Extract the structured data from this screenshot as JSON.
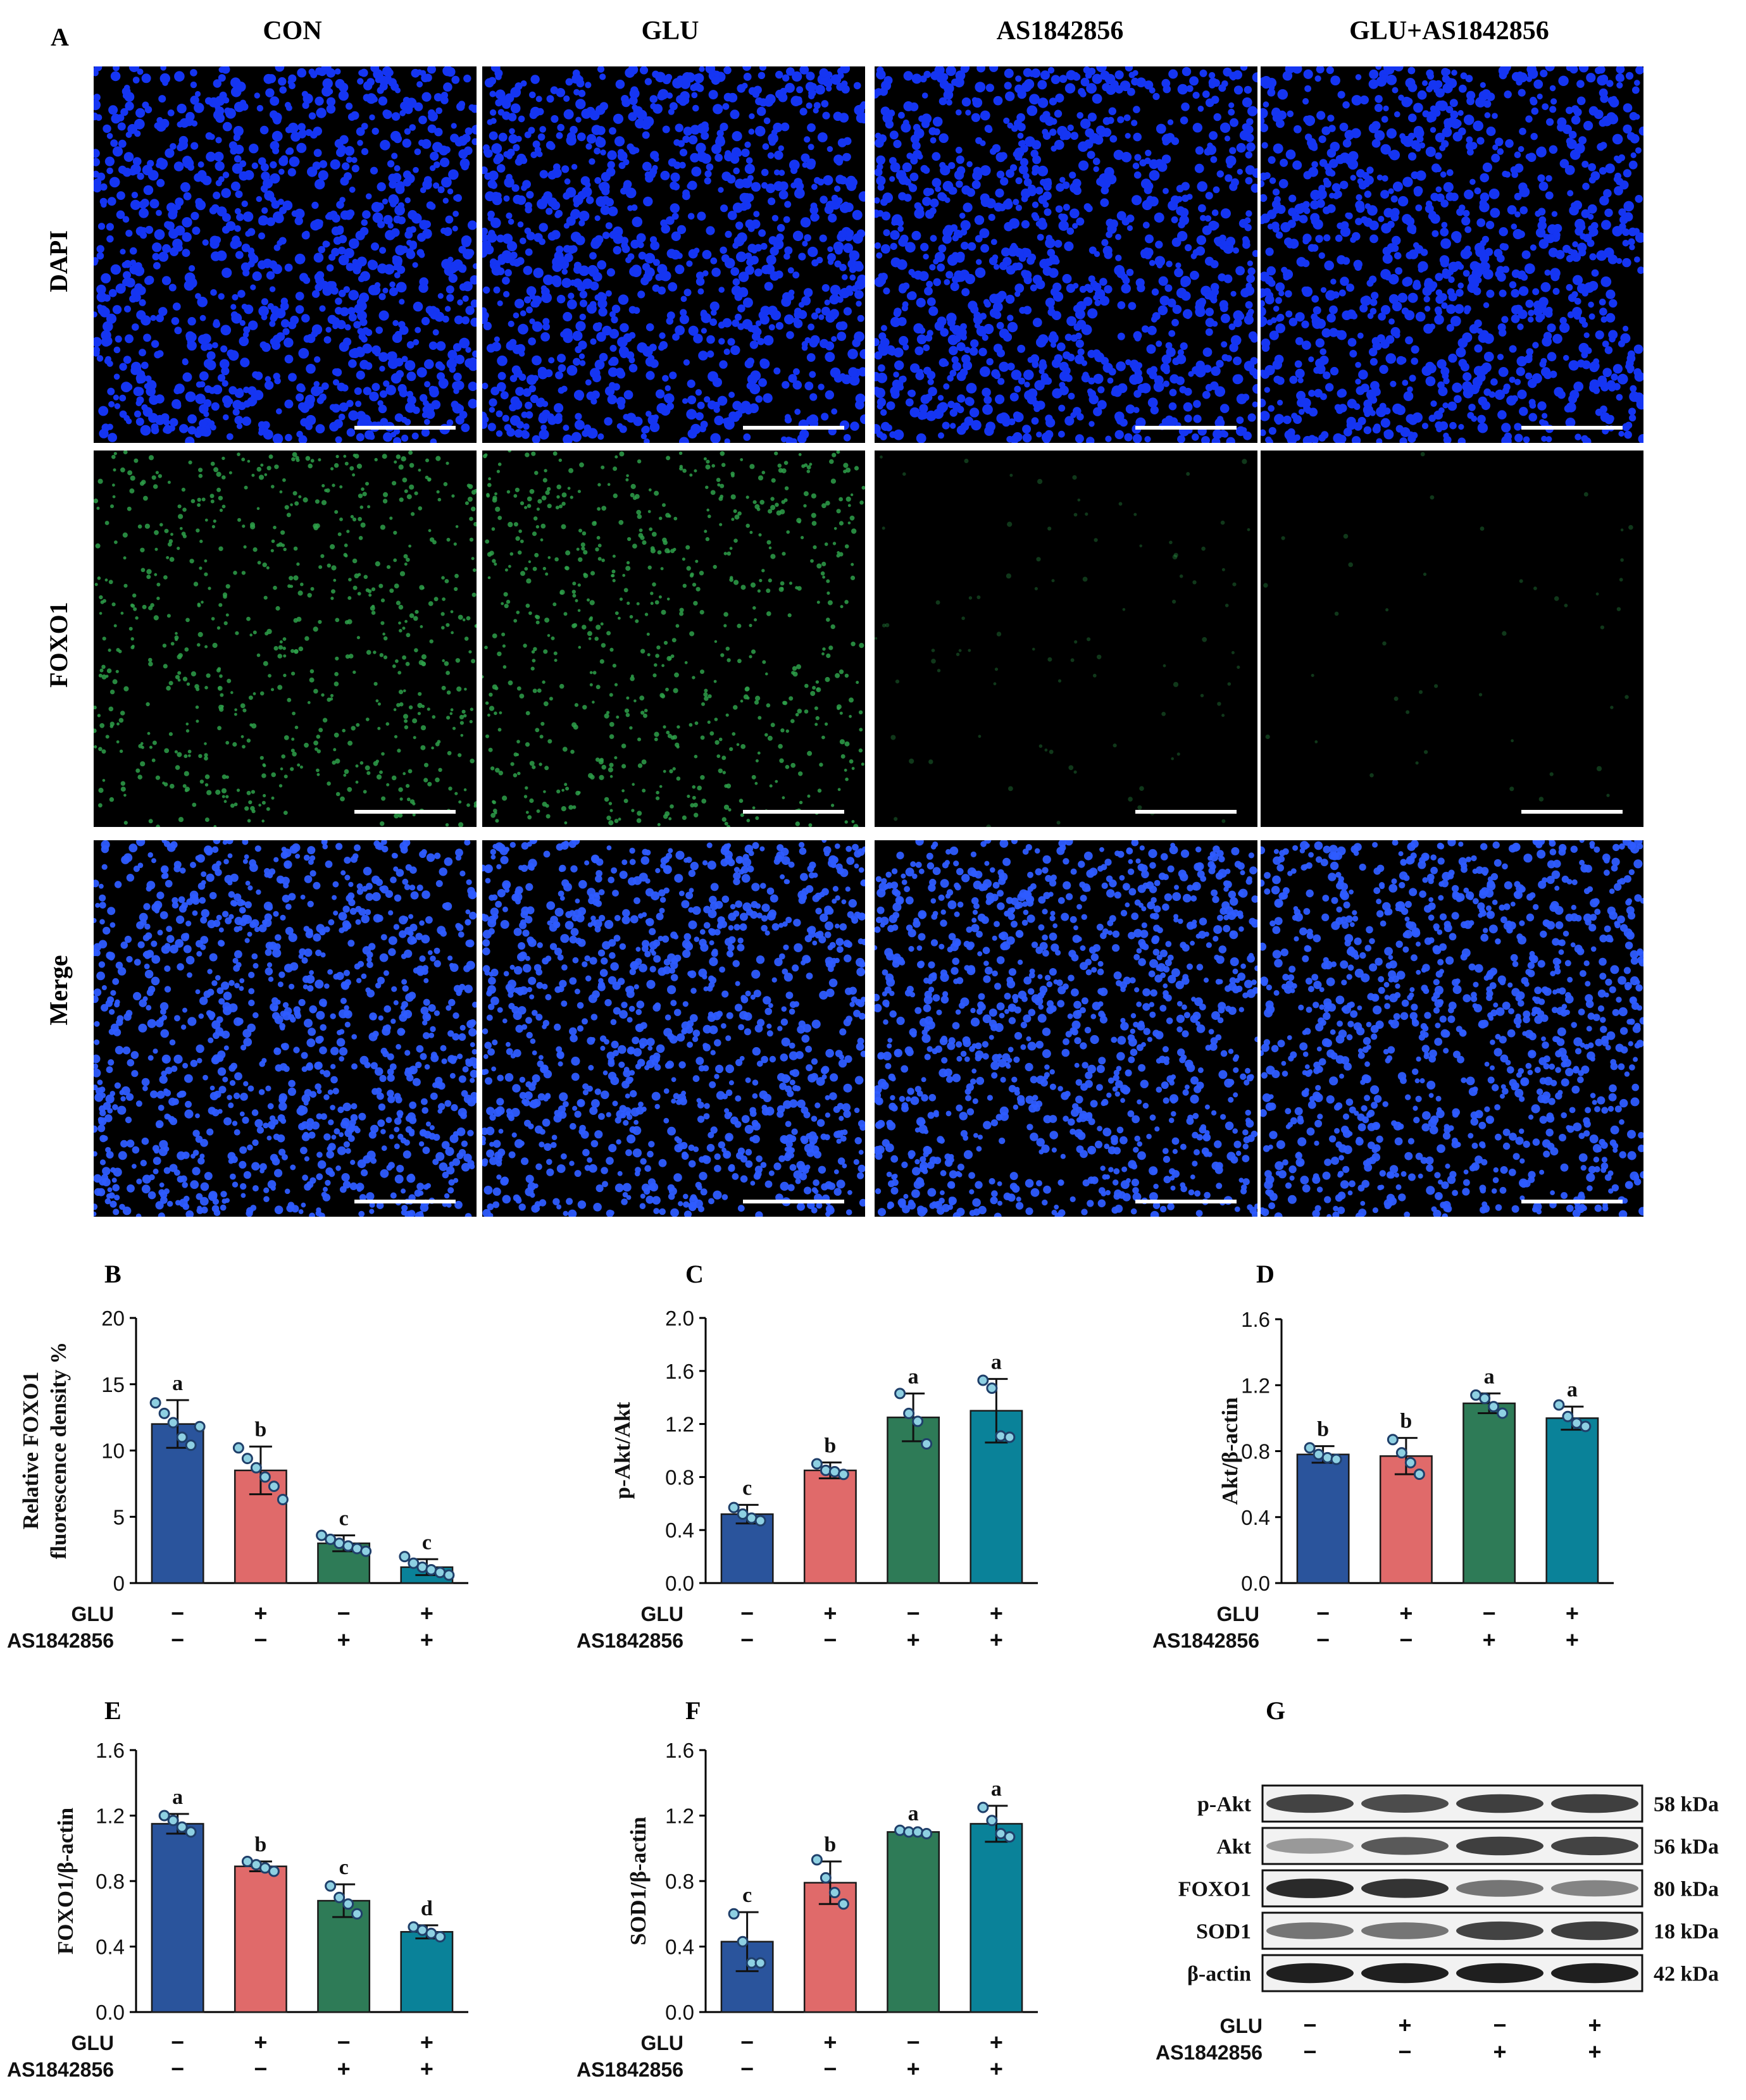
{
  "colors": {
    "bar_con": "#2a549c",
    "bar_glu": "#e06a6a",
    "bar_as": "#2e7b57",
    "bar_glu_as": "#0a8299",
    "dot_fill": "#8ed0e2",
    "dot_stroke": "#1f3f6a",
    "dapi_nucleus": "#1535f2",
    "foxo1_signal": "#2ea04a",
    "merge_nucleus": "#2e5cff"
  },
  "panel_A": {
    "letter": "A",
    "columns": [
      "CON",
      "GLU",
      "AS1842856",
      "GLU+AS1842856"
    ],
    "rows": [
      "DAPI",
      "FOXO1",
      "Merge"
    ],
    "foxo1_visibility": [
      1,
      1,
      0.12,
      0.05
    ]
  },
  "conditions": {
    "row_labels": [
      "GLU",
      "AS1842856"
    ],
    "glu": [
      "−",
      "+",
      "−",
      "+"
    ],
    "as": [
      "−",
      "−",
      "+",
      "+"
    ]
  },
  "chart_data": [
    {
      "panel": "B",
      "type": "bar",
      "ylabel_lines": [
        "Relative FOXO1",
        "fluorescence density %"
      ],
      "ylim": [
        0,
        20
      ],
      "yticks": [
        "0",
        "5",
        "10",
        "15",
        "20"
      ],
      "values": [
        12.0,
        8.5,
        3.0,
        1.2
      ],
      "errors": [
        1.8,
        1.8,
        0.6,
        0.6
      ],
      "letters": [
        "a",
        "b",
        "c",
        "c"
      ],
      "points": [
        [
          13.6,
          12.8,
          12.1,
          11.0,
          10.4,
          11.8
        ],
        [
          10.2,
          9.4,
          8.7,
          8.0,
          7.3,
          6.3
        ],
        [
          3.6,
          3.3,
          3.0,
          2.8,
          2.6,
          2.4
        ],
        [
          2.0,
          1.5,
          1.2,
          1.0,
          0.8,
          0.6
        ]
      ]
    },
    {
      "panel": "C",
      "type": "bar",
      "ylabel_lines": [
        "p-Akt/Akt"
      ],
      "ylim": [
        0,
        2.0
      ],
      "yticks": [
        "0.0",
        "0.4",
        "0.8",
        "1.2",
        "1.6",
        "2.0"
      ],
      "values": [
        0.52,
        0.85,
        1.25,
        1.3
      ],
      "errors": [
        0.07,
        0.06,
        0.18,
        0.24
      ],
      "letters": [
        "c",
        "b",
        "a",
        "a"
      ],
      "points": [
        [
          0.57,
          0.52,
          0.49,
          0.47
        ],
        [
          0.9,
          0.85,
          0.84,
          0.82
        ],
        [
          1.43,
          1.28,
          1.22,
          1.05
        ],
        [
          1.53,
          1.47,
          1.11,
          1.1
        ]
      ]
    },
    {
      "panel": "D",
      "type": "bar",
      "ylabel_lines": [
        "Akt/β-actin"
      ],
      "ylim": [
        0,
        1.6
      ],
      "yticks": [
        "0.0",
        "0.4",
        "0.8",
        "1.2",
        "1.6"
      ],
      "values": [
        0.78,
        0.77,
        1.09,
        1.0
      ],
      "errors": [
        0.05,
        0.11,
        0.06,
        0.07
      ],
      "letters": [
        "b",
        "b",
        "a",
        "a"
      ],
      "points": [
        [
          0.82,
          0.78,
          0.76,
          0.75
        ],
        [
          0.87,
          0.79,
          0.73,
          0.66
        ],
        [
          1.14,
          1.12,
          1.07,
          1.03
        ],
        [
          1.08,
          1.01,
          0.97,
          0.95
        ]
      ]
    },
    {
      "panel": "E",
      "type": "bar",
      "ylabel_lines": [
        "FOXO1/β-actin"
      ],
      "ylim": [
        0,
        1.6
      ],
      "yticks": [
        "0.0",
        "0.4",
        "0.8",
        "1.2",
        "1.6"
      ],
      "values": [
        1.15,
        0.89,
        0.68,
        0.49
      ],
      "errors": [
        0.06,
        0.03,
        0.1,
        0.04
      ],
      "letters": [
        "a",
        "b",
        "c",
        "d"
      ],
      "points": [
        [
          1.2,
          1.17,
          1.13,
          1.1
        ],
        [
          0.92,
          0.9,
          0.88,
          0.86
        ],
        [
          0.77,
          0.7,
          0.66,
          0.6
        ],
        [
          0.52,
          0.5,
          0.48,
          0.46
        ]
      ]
    },
    {
      "panel": "F",
      "type": "bar",
      "ylabel_lines": [
        "SOD1/β-actin"
      ],
      "ylim": [
        0,
        1.6
      ],
      "yticks": [
        "0.0",
        "0.4",
        "0.8",
        "1.2",
        "1.6"
      ],
      "values": [
        0.43,
        0.79,
        1.1,
        1.15
      ],
      "errors": [
        0.18,
        0.13,
        0.01,
        0.11
      ],
      "letters": [
        "c",
        "b",
        "a",
        "a"
      ],
      "points": [
        [
          0.6,
          0.43,
          0.3,
          0.3
        ],
        [
          0.93,
          0.82,
          0.73,
          0.66
        ],
        [
          1.11,
          1.1,
          1.1,
          1.09
        ],
        [
          1.25,
          1.17,
          1.09,
          1.07
        ]
      ]
    }
  ],
  "panel_G": {
    "letter": "G",
    "proteins": [
      "p-Akt",
      "Akt",
      "FOXO1",
      "SOD1",
      "β-actin"
    ],
    "kda": [
      "58 kDa",
      "56 kDa",
      "80 kDa",
      "18 kDa",
      "42 kDa"
    ],
    "intensities": [
      [
        0.78,
        0.74,
        0.8,
        0.8
      ],
      [
        0.38,
        0.68,
        0.8,
        0.78
      ],
      [
        0.9,
        0.85,
        0.55,
        0.48
      ],
      [
        0.55,
        0.55,
        0.78,
        0.8
      ],
      [
        0.95,
        0.95,
        0.95,
        0.95
      ]
    ]
  }
}
